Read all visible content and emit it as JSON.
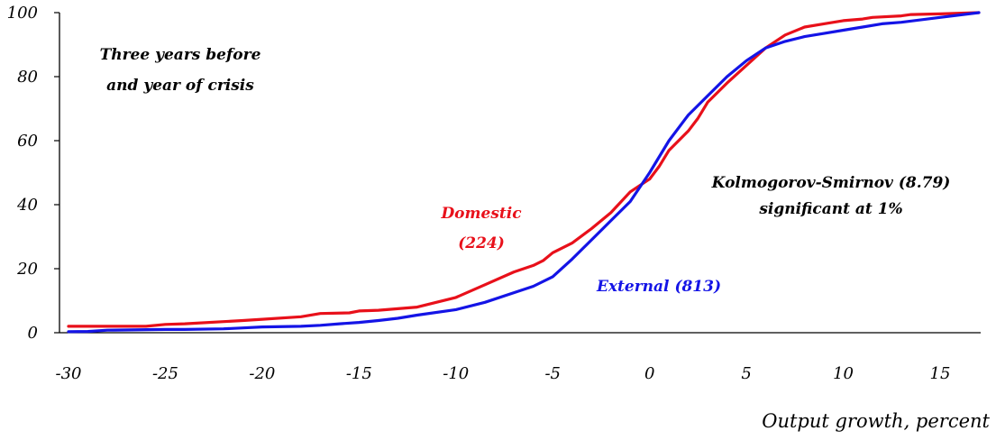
{
  "chart_data": {
    "type": "line",
    "title": "",
    "xlabel": "Output growth, percent",
    "ylabel": "",
    "xlim": [
      -30,
      17
    ],
    "ylim": [
      0,
      100
    ],
    "x_ticks": [
      "-30",
      "-25",
      "-20",
      "-15",
      "-10",
      "-5",
      "0",
      "5",
      "10",
      "15"
    ],
    "y_ticks": [
      "0",
      "20",
      "40",
      "60",
      "80",
      "100"
    ],
    "grid": false,
    "annotations": {
      "period_line1": "Three years before",
      "period_line2": "and year of crisis",
      "ks_line1": "Kolmogorov-Smirnov (8.79)",
      "ks_line2": "significant at 1%"
    },
    "series": [
      {
        "name": "Domestic",
        "label_line1": "Domestic",
        "label_line2": "(224)",
        "color": "#e8101a",
        "x": [
          -30,
          -26,
          -25,
          -24,
          -21,
          -20,
          -18,
          -17,
          -15.5,
          -15,
          -14,
          -12,
          -10,
          -8.5,
          -7,
          -6,
          -5.5,
          -5,
          -4,
          -3,
          -2,
          -1,
          -0.5,
          0,
          0.5,
          1,
          2,
          2.5,
          3,
          4,
          5,
          6,
          7,
          8,
          9,
          9.5,
          10,
          11,
          11.5,
          13,
          13.5,
          15,
          17
        ],
        "y": [
          2,
          2,
          2.6,
          2.8,
          3.8,
          4.2,
          5,
          6,
          6.2,
          6.8,
          7,
          8,
          11,
          15,
          19,
          21,
          22.5,
          25,
          28,
          32.5,
          37.5,
          44,
          46,
          48,
          52,
          57,
          63,
          67,
          72,
          78,
          83.5,
          89,
          93,
          95.5,
          96.5,
          97,
          97.5,
          98,
          98.5,
          99,
          99.4,
          99.6,
          100
        ]
      },
      {
        "name": "External",
        "label": "External (813)",
        "color": "#1414e6",
        "x": [
          -30,
          -29,
          -28,
          -25,
          -24,
          -22,
          -21,
          -20,
          -18,
          -17,
          -16,
          -15,
          -14,
          -13,
          -12,
          -10,
          -8.5,
          -7,
          -6,
          -5,
          -4,
          -3,
          -2,
          -1,
          0,
          1,
          2,
          3,
          4,
          5,
          6,
          7,
          8,
          9,
          10,
          11,
          12,
          13,
          15,
          17
        ],
        "y": [
          0.3,
          0.4,
          0.8,
          1,
          1,
          1.2,
          1.5,
          1.8,
          2,
          2.3,
          2.8,
          3.2,
          3.8,
          4.5,
          5.5,
          7.2,
          9.5,
          12.5,
          14.5,
          17.5,
          23,
          29,
          35,
          41,
          50,
          60,
          68,
          74,
          80,
          85,
          89,
          91,
          92.5,
          93.5,
          94.5,
          95.5,
          96.5,
          97,
          98.5,
          100
        ]
      }
    ]
  }
}
